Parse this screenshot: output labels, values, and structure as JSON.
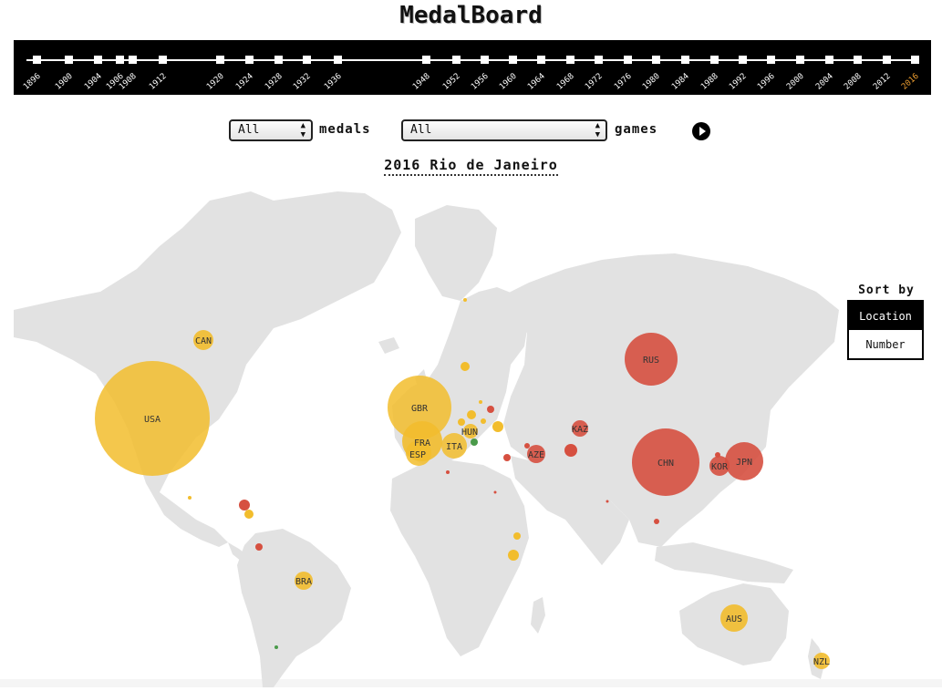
{
  "app": {
    "title": "MedalBoard"
  },
  "timeline": {
    "years": [
      "1896",
      "1900",
      "1904",
      "1906",
      "1908",
      "1912",
      "1920",
      "1924",
      "1928",
      "1932",
      "1936",
      "1948",
      "1952",
      "1956",
      "1960",
      "1964",
      "1968",
      "1972",
      "1976",
      "1980",
      "1984",
      "1988",
      "1992",
      "1996",
      "2000",
      "2004",
      "2008",
      "2012",
      "2016"
    ],
    "selected": "2016"
  },
  "controls": {
    "medal_select": "All",
    "medals_label": "medals",
    "games_select": "All",
    "games_label": "games"
  },
  "games_title": "2016 Rio de Janeiro",
  "sort": {
    "title": "Sort by",
    "options": [
      "Location",
      "Number"
    ],
    "selected": "Location"
  },
  "colors": {
    "yellow": "#f2bd2d",
    "red": "#d65040",
    "green": "#4a9a4a",
    "land": "#e2e2e2"
  },
  "countries": [
    {
      "code": "USA",
      "color": "yellow"
    },
    {
      "code": "GBR",
      "color": "yellow"
    },
    {
      "code": "CHN",
      "color": "red"
    },
    {
      "code": "RUS",
      "color": "red"
    },
    {
      "code": "JPN",
      "color": "red"
    },
    {
      "code": "FRA",
      "color": "yellow"
    },
    {
      "code": "ESP",
      "color": "yellow"
    },
    {
      "code": "ITA",
      "color": "yellow"
    },
    {
      "code": "AUS",
      "color": "yellow"
    },
    {
      "code": "HUN",
      "color": "yellow"
    },
    {
      "code": "KOR",
      "color": "red"
    },
    {
      "code": "KAZ",
      "color": "red"
    },
    {
      "code": "AZE",
      "color": "red"
    },
    {
      "code": "CAN",
      "color": "yellow"
    },
    {
      "code": "BRA",
      "color": "yellow"
    },
    {
      "code": "NZL",
      "color": "yellow"
    }
  ]
}
